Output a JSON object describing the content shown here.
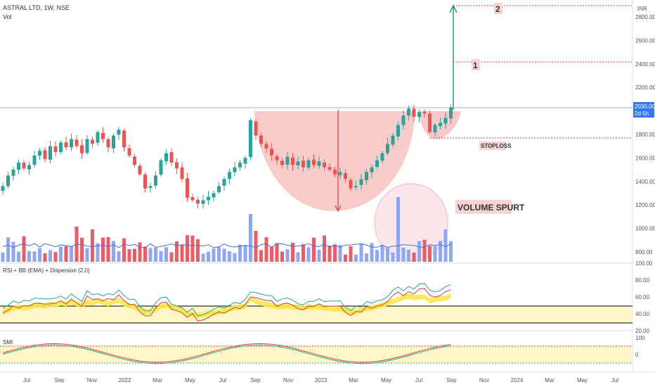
{
  "header": {
    "title": "ASTRAL LTD, 1W, NSE",
    "vol_label": "Vol",
    "currency": "INR"
  },
  "colors": {
    "up": "#26a69a",
    "down": "#ef5350",
    "vol_up": "#8fa8f5",
    "vol_down": "#f05a66",
    "cup": "#f7b6b6",
    "target": "#e53935",
    "arrow": "#1e9a6a",
    "rsi_band": "#f6e84a",
    "zone": "#fff7c8"
  },
  "price_axis": {
    "ticks": [
      "2800.00",
      "2600.00",
      "2400.00",
      "2200.00",
      "1800.00",
      "1600.00",
      "1400.00",
      "1200.00",
      "1000.00",
      "800.00"
    ],
    "current_price": "2030.00",
    "countdown": "2d 5h"
  },
  "annotations": {
    "target2": "2",
    "target1": "1",
    "stoploss": "STOPLOSS",
    "volume_spurt": "VOLUME SPURT"
  },
  "rsi_panel": {
    "title": "RSI + BB (EMA) + Dispersion (2.0)",
    "ticks": [
      "100.00",
      "80.00",
      "60.00",
      "40.00",
      "20.00"
    ]
  },
  "smi_panel": {
    "title": "SMI",
    "ticks": [
      "100",
      "0"
    ]
  },
  "time_axis": {
    "labels": [
      "Jul",
      "Sep",
      "Nov",
      "2022",
      "Mar",
      "May",
      "Jul",
      "Sep",
      "Nov",
      "2023",
      "Mar",
      "May",
      "Jul",
      "Sep",
      "Nov",
      "2024",
      "Mar",
      "May",
      "Jul"
    ]
  },
  "chart_data": {
    "type": "candlestick",
    "title": "ASTRAL LTD, 1W, NSE",
    "y_range": [
      700,
      2880
    ],
    "close_series": [
      1360,
      1450,
      1500,
      1560,
      1510,
      1540,
      1620,
      1660,
      1590,
      1700,
      1650,
      1730,
      1690,
      1760,
      1700,
      1640,
      1760,
      1720,
      1820,
      1760,
      1690,
      1790,
      1840,
      1690,
      1620,
      1540,
      1460,
      1340,
      1360,
      1450,
      1580,
      1640,
      1560,
      1510,
      1420,
      1260,
      1240,
      1210,
      1240,
      1270,
      1300,
      1360,
      1420,
      1480,
      1520,
      1560,
      1600,
      1920,
      1790,
      1720,
      1680,
      1620,
      1580,
      1540,
      1610,
      1540,
      1570,
      1520,
      1580,
      1540,
      1570,
      1520,
      1500,
      1460,
      1480,
      1420,
      1340,
      1360,
      1420,
      1480,
      1520,
      1580,
      1640,
      1720,
      1790,
      1880,
      1960,
      2020,
      1950,
      1990,
      1980,
      1820,
      1880,
      1900,
      1940,
      2030
    ],
    "targets": [
      {
        "label": "1",
        "value": 2420
      },
      {
        "label": "2",
        "value": 2880
      }
    ],
    "stoploss": 1765,
    "current_price": 2030
  }
}
